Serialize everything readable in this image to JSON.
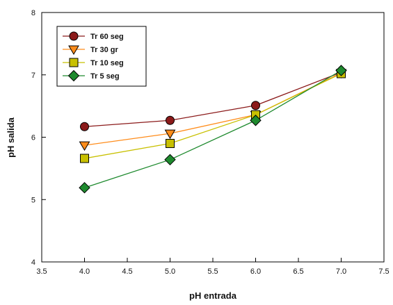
{
  "chart_data": {
    "type": "line",
    "title": "",
    "xlabel": "pH entrada",
    "ylabel": "pH salida",
    "xlim": [
      3.5,
      7.5
    ],
    "ylim": [
      4,
      8
    ],
    "xticks": [
      3.5,
      4.0,
      4.5,
      5.0,
      5.5,
      6.0,
      6.5,
      7.0,
      7.5
    ],
    "xtick_labels": [
      "3.5",
      "4.0",
      "4.5",
      "5.0",
      "5.5",
      "6.0",
      "6.5",
      "7.0",
      "7.5"
    ],
    "yticks": [
      4,
      5,
      6,
      7,
      8
    ],
    "ytick_labels": [
      "4",
      "5",
      "6",
      "7",
      "8"
    ],
    "grid": false,
    "legend_position": "top-left",
    "x": [
      4.0,
      5.0,
      6.0,
      7.0
    ],
    "series": [
      {
        "name": "Tr 60 seg",
        "values": [
          6.17,
          6.27,
          6.51,
          7.04
        ],
        "color": "#8b1a1a",
        "line_color": "#8b1a1a",
        "marker": "circle"
      },
      {
        "name": "Tr 30 gr",
        "values": [
          5.87,
          6.06,
          6.36,
          7.03
        ],
        "color": "#ff8c1a",
        "line_color": "#ff8c1a",
        "marker": "triangle-down"
      },
      {
        "name": "Tr 10 seg",
        "values": [
          5.66,
          5.9,
          6.36,
          7.02
        ],
        "color": "#c8c000",
        "line_color": "#c8c000",
        "marker": "square"
      },
      {
        "name": "Tr 5 seg",
        "values": [
          5.19,
          5.64,
          6.27,
          7.07
        ],
        "color": "#1e8a2e",
        "line_color": "#1e8a2e",
        "marker": "diamond"
      }
    ]
  }
}
